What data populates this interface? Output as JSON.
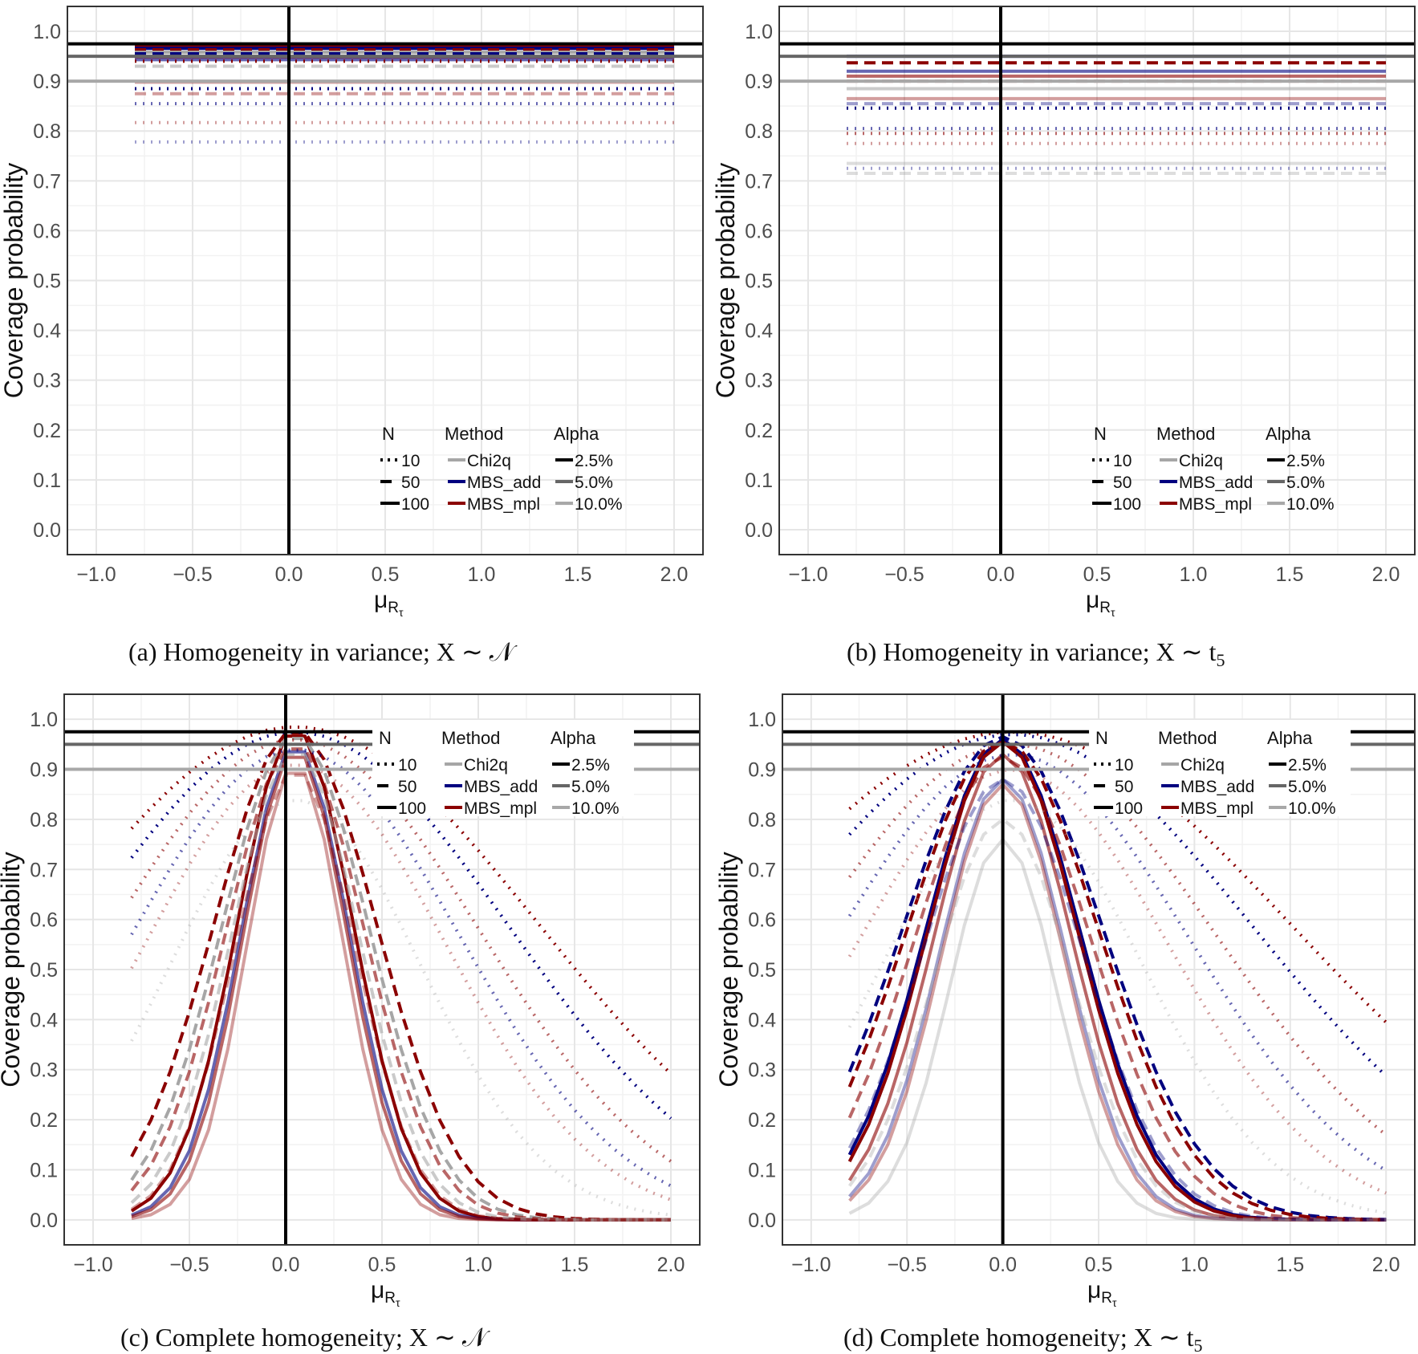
{
  "colors": {
    "Chi2q": "#a6a6a6",
    "MBS_add": "#00007f",
    "MBS_mpl": "#8b0000",
    "alpha_2.5": "#000000",
    "alpha_5.0": "#666666",
    "alpha_10.0": "#a8a8a8"
  },
  "chart_data": [
    {
      "id": "a",
      "type": "line",
      "caption": "(a) Homogeneity in variance; X ∼ 𝒩",
      "ylabel": "Coverage probability",
      "xlabel": "μ",
      "xlabel_sub": "R",
      "xlabel_subsub": "τ",
      "xlim": [
        -1.15,
        2.15
      ],
      "ylim": [
        -0.05,
        1.05
      ],
      "xticks": [
        -1.0,
        -0.5,
        0.0,
        0.5,
        1.0,
        1.5,
        2.0
      ],
      "xtick_labels": [
        "−1.0",
        "−0.5",
        "0.0",
        "0.5",
        "1.0",
        "1.5",
        "2.0"
      ],
      "yticks": [
        0,
        0.1,
        0.2,
        0.3,
        0.4,
        0.5,
        0.6,
        0.7,
        0.8,
        0.9,
        1.0
      ],
      "ytick_labels": [
        "0.0",
        "0.1",
        "0.2",
        "0.3",
        "0.4",
        "0.5",
        "0.6",
        "0.7",
        "0.8",
        "0.9",
        "1.0"
      ],
      "vline": 0.0,
      "hlines": [
        {
          "alpha": "2.5%",
          "y": 0.975
        },
        {
          "alpha": "5.0%",
          "y": 0.95
        },
        {
          "alpha": "10.0%",
          "y": 0.9
        }
      ],
      "x": [
        -0.8,
        2.0
      ],
      "series": [
        {
          "method": "MBS_mpl",
          "N": "100",
          "alpha": "2.5%",
          "values": [
            0.97,
            0.97
          ]
        },
        {
          "method": "MBS_add",
          "N": "100",
          "alpha": "2.5%",
          "values": [
            0.966,
            0.966
          ]
        },
        {
          "method": "MBS_mpl",
          "N": "50",
          "alpha": "2.5%",
          "values": [
            0.963,
            0.963
          ]
        },
        {
          "method": "Chi2q",
          "N": "100",
          "alpha": "2.5%",
          "values": [
            0.958,
            0.958
          ]
        },
        {
          "method": "MBS_add",
          "N": "50",
          "alpha": "2.5%",
          "values": [
            0.955,
            0.955
          ]
        },
        {
          "method": "MBS_mpl",
          "N": "100",
          "alpha": "5.0%",
          "values": [
            0.948,
            0.948
          ]
        },
        {
          "method": "MBS_add",
          "N": "100",
          "alpha": "5.0%",
          "values": [
            0.943,
            0.943
          ]
        },
        {
          "method": "MBS_mpl",
          "N": "10",
          "alpha": "2.5%",
          "values": [
            0.94,
            0.94
          ]
        },
        {
          "method": "Chi2q",
          "N": "50",
          "alpha": "5.0%",
          "values": [
            0.93,
            0.93
          ]
        },
        {
          "method": "MBS_mpl",
          "N": "100",
          "alpha": "10.0%",
          "values": [
            0.898,
            0.898
          ]
        },
        {
          "method": "MBS_add",
          "N": "10",
          "alpha": "2.5%",
          "values": [
            0.885,
            0.885
          ]
        },
        {
          "method": "MBS_mpl",
          "N": "50",
          "alpha": "10.0%",
          "values": [
            0.875,
            0.875
          ]
        },
        {
          "method": "MBS_add",
          "N": "10",
          "alpha": "5.0%",
          "values": [
            0.855,
            0.855
          ]
        },
        {
          "method": "MBS_mpl",
          "N": "10",
          "alpha": "10.0%",
          "values": [
            0.817,
            0.817
          ]
        },
        {
          "method": "MBS_add",
          "N": "10",
          "alpha": "10.0%",
          "values": [
            0.778,
            0.778
          ]
        }
      ],
      "legend": {
        "position": "bottom-right-inside",
        "N_title": "N",
        "N_items": [
          "10",
          "50",
          "100"
        ],
        "Method_title": "Method",
        "Method_items": [
          "Chi2q",
          "MBS_add",
          "MBS_mpl"
        ],
        "Alpha_title": "Alpha",
        "Alpha_items": [
          "2.5%",
          "5.0%",
          "10.0%"
        ]
      }
    },
    {
      "id": "b",
      "type": "line",
      "caption": "(b) Homogeneity in variance; X ∼ t",
      "caption_sub": "5",
      "ylabel": "Coverage probability",
      "xlabel": "μ",
      "xlabel_sub": "R",
      "xlabel_subsub": "τ",
      "xlim": [
        -1.15,
        2.15
      ],
      "ylim": [
        -0.05,
        1.05
      ],
      "xticks": [
        -1.0,
        -0.5,
        0.0,
        0.5,
        1.0,
        1.5,
        2.0
      ],
      "xtick_labels": [
        "−1.0",
        "−0.5",
        "0.0",
        "0.5",
        "1.0",
        "1.5",
        "2.0"
      ],
      "yticks": [
        0,
        0.1,
        0.2,
        0.3,
        0.4,
        0.5,
        0.6,
        0.7,
        0.8,
        0.9,
        1.0
      ],
      "ytick_labels": [
        "0.0",
        "0.1",
        "0.2",
        "0.3",
        "0.4",
        "0.5",
        "0.6",
        "0.7",
        "0.8",
        "0.9",
        "1.0"
      ],
      "vline": 0.0,
      "hlines": [
        {
          "alpha": "2.5%",
          "y": 0.975
        },
        {
          "alpha": "5.0%",
          "y": 0.95
        },
        {
          "alpha": "10.0%",
          "y": 0.9
        }
      ],
      "x": [
        -0.8,
        2.0
      ],
      "series": [
        {
          "method": "MBS_add",
          "N": "100",
          "alpha": "2.5%",
          "values": [
            0.95,
            0.95
          ]
        },
        {
          "method": "MBS_mpl",
          "N": "50",
          "alpha": "2.5%",
          "values": [
            0.937,
            0.937
          ]
        },
        {
          "method": "MBS_add",
          "N": "100",
          "alpha": "5.0%",
          "values": [
            0.92,
            0.92
          ]
        },
        {
          "method": "MBS_mpl",
          "N": "100",
          "alpha": "5.0%",
          "values": [
            0.91,
            0.91
          ]
        },
        {
          "method": "MBS_mpl",
          "N": "50",
          "alpha": "5.0%",
          "values": [
            0.9,
            0.9
          ]
        },
        {
          "method": "Chi2q",
          "N": "100",
          "alpha": "5.0%",
          "values": [
            0.885,
            0.885
          ]
        },
        {
          "method": "MBS_mpl",
          "N": "100",
          "alpha": "10.0%",
          "values": [
            0.865,
            0.865
          ]
        },
        {
          "method": "MBS_add",
          "N": "50",
          "alpha": "10.0%",
          "values": [
            0.855,
            0.855
          ]
        },
        {
          "method": "MBS_add",
          "N": "10",
          "alpha": "2.5%",
          "values": [
            0.846,
            0.846
          ]
        },
        {
          "method": "MBS_add",
          "N": "10",
          "alpha": "5.0%",
          "values": [
            0.805,
            0.805
          ]
        },
        {
          "method": "MBS_mpl",
          "N": "10",
          "alpha": "5.0%",
          "values": [
            0.795,
            0.795
          ]
        },
        {
          "method": "MBS_mpl",
          "N": "10",
          "alpha": "10.0%",
          "values": [
            0.775,
            0.775
          ]
        },
        {
          "method": "Chi2q",
          "N": "100",
          "alpha": "10.0%",
          "values": [
            0.735,
            0.735
          ]
        },
        {
          "method": "MBS_add",
          "N": "10",
          "alpha": "10.0%",
          "values": [
            0.725,
            0.725
          ]
        },
        {
          "method": "Chi2q",
          "N": "50",
          "alpha": "10.0%",
          "values": [
            0.715,
            0.715
          ]
        }
      ],
      "legend": {
        "position": "bottom-right-inside",
        "N_title": "N",
        "N_items": [
          "10",
          "50",
          "100"
        ],
        "Method_title": "Method",
        "Method_items": [
          "Chi2q",
          "MBS_add",
          "MBS_mpl"
        ],
        "Alpha_title": "Alpha",
        "Alpha_items": [
          "2.5%",
          "5.0%",
          "10.0%"
        ]
      }
    },
    {
      "id": "c",
      "type": "line",
      "caption": "(c) Complete homogeneity; X ∼ 𝒩",
      "ylabel": "Coverage probability",
      "xlabel": "μ",
      "xlabel_sub": "R",
      "xlabel_subsub": "τ",
      "xlim": [
        -1.15,
        2.15
      ],
      "ylim": [
        -0.05,
        1.05
      ],
      "xticks": [
        -1.0,
        -0.5,
        0.0,
        0.5,
        1.0,
        1.5,
        2.0
      ],
      "xtick_labels": [
        "−1.0",
        "−0.5",
        "0.0",
        "0.5",
        "1.0",
        "1.5",
        "2.0"
      ],
      "yticks": [
        0,
        0.1,
        0.2,
        0.3,
        0.4,
        0.5,
        0.6,
        0.7,
        0.8,
        0.9,
        1.0
      ],
      "ytick_labels": [
        "0.0",
        "0.1",
        "0.2",
        "0.3",
        "0.4",
        "0.5",
        "0.6",
        "0.7",
        "0.8",
        "0.9",
        "1.0"
      ],
      "vline": 0.0,
      "hlines": [
        {
          "alpha": "2.5%",
          "y": 0.975
        },
        {
          "alpha": "5.0%",
          "y": 0.95
        },
        {
          "alpha": "10.0%",
          "y": 0.9
        }
      ],
      "curve_params": {
        "note": "Coverage curves approximated as c(x) = peak * exp(-((x - mu0)/width)^2 / 2) ; x from -0.8 to 2.0 step 0.1",
        "x_min": -0.8,
        "x_max": 2.0,
        "x_step": 0.1
      },
      "series": [
        {
          "method": "MBS_mpl",
          "N": "100",
          "alpha": "2.5%",
          "peak": 0.98,
          "mu0": 0.05,
          "width": 0.3
        },
        {
          "method": "MBS_add",
          "N": "100",
          "alpha": "5.0%",
          "peak": 0.95,
          "mu0": 0.05,
          "width": 0.28
        },
        {
          "method": "MBS_mpl",
          "N": "100",
          "alpha": "5.0%",
          "peak": 0.94,
          "mu0": 0.05,
          "width": 0.27
        },
        {
          "method": "MBS_mpl",
          "N": "100",
          "alpha": "10.0%",
          "peak": 0.91,
          "mu0": 0.05,
          "width": 0.25
        },
        {
          "method": "MBS_mpl",
          "N": "50",
          "alpha": "2.5%",
          "peak": 0.98,
          "mu0": 0.05,
          "width": 0.42
        },
        {
          "method": "Chi2q",
          "N": "50",
          "alpha": "2.5%",
          "peak": 0.97,
          "mu0": 0.05,
          "width": 0.38
        },
        {
          "method": "MBS_mpl",
          "N": "50",
          "alpha": "5.0%",
          "peak": 0.95,
          "mu0": 0.05,
          "width": 0.36
        },
        {
          "method": "Chi2q",
          "N": "50",
          "alpha": "5.0%",
          "peak": 0.94,
          "mu0": 0.05,
          "width": 0.33
        },
        {
          "method": "MBS_mpl",
          "N": "50",
          "alpha": "10.0%",
          "peak": 0.9,
          "mu0": 0.05,
          "width": 0.31
        },
        {
          "method": "MBS_mpl",
          "N": "10",
          "alpha": "2.5%",
          "peak": 0.985,
          "mu0": 0.05,
          "width": 1.25
        },
        {
          "method": "MBS_add",
          "N": "10",
          "alpha": "2.5%",
          "peak": 0.975,
          "mu0": 0.05,
          "width": 1.1
        },
        {
          "method": "MBS_mpl",
          "N": "10",
          "alpha": "5.0%",
          "peak": 0.96,
          "mu0": 0.05,
          "width": 0.95
        },
        {
          "method": "MBS_add",
          "N": "10",
          "alpha": "5.0%",
          "peak": 0.94,
          "mu0": 0.05,
          "width": 0.85
        },
        {
          "method": "MBS_mpl",
          "N": "10",
          "alpha": "10.0%",
          "peak": 0.91,
          "mu0": 0.05,
          "width": 0.78
        },
        {
          "method": "Chi2q",
          "N": "10",
          "alpha": "10.0%",
          "peak": 0.84,
          "mu0": 0.05,
          "width": 0.65
        }
      ],
      "legend": {
        "position": "top-right-inside",
        "N_title": "N",
        "N_items": [
          "10",
          "50",
          "100"
        ],
        "Method_title": "Method",
        "Method_items": [
          "Chi2q",
          "MBS_add",
          "MBS_mpl"
        ],
        "Alpha_title": "Alpha",
        "Alpha_items": [
          "2.5%",
          "5.0%",
          "10.0%"
        ]
      }
    },
    {
      "id": "d",
      "type": "line",
      "caption": "(d) Complete homogeneity; X ∼ t",
      "caption_sub": "5",
      "ylabel": "Coverage probability",
      "xlabel": "μ",
      "xlabel_sub": "R",
      "xlabel_subsub": "τ",
      "xlim": [
        -1.15,
        2.15
      ],
      "ylim": [
        -0.05,
        1.05
      ],
      "xticks": [
        -1.0,
        -0.5,
        0.0,
        0.5,
        1.0,
        1.5,
        2.0
      ],
      "xtick_labels": [
        "−1.0",
        "−0.5",
        "0.0",
        "0.5",
        "1.0",
        "1.5",
        "2.0"
      ],
      "yticks": [
        0,
        0.1,
        0.2,
        0.3,
        0.4,
        0.5,
        0.6,
        0.7,
        0.8,
        0.9,
        1.0
      ],
      "ytick_labels": [
        "0.0",
        "0.1",
        "0.2",
        "0.3",
        "0.4",
        "0.5",
        "0.6",
        "0.7",
        "0.8",
        "0.9",
        "1.0"
      ],
      "vline": 0.0,
      "hlines": [
        {
          "alpha": "2.5%",
          "y": 0.975
        },
        {
          "alpha": "5.0%",
          "y": 0.95
        },
        {
          "alpha": "10.0%",
          "y": 0.9
        }
      ],
      "curve_params": {
        "note": "Coverage curves approximated as c(x) = peak * exp(-((x - mu0)/width)^2 / 2) ; x from -0.8 to 2.0 step 0.1",
        "x_min": -0.8,
        "x_max": 2.0,
        "x_step": 0.1
      },
      "series": [
        {
          "method": "MBS_add",
          "N": "100",
          "alpha": "2.5%",
          "peak": 0.96,
          "mu0": 0.0,
          "width": 0.4
        },
        {
          "method": "MBS_mpl",
          "N": "100",
          "alpha": "2.5%",
          "peak": 0.955,
          "mu0": 0.0,
          "width": 0.39
        },
        {
          "method": "MBS_mpl",
          "N": "100",
          "alpha": "5.0%",
          "peak": 0.93,
          "mu0": 0.0,
          "width": 0.36
        },
        {
          "method": "MBS_add",
          "N": "100",
          "alpha": "10.0%",
          "peak": 0.88,
          "mu0": 0.0,
          "width": 0.33
        },
        {
          "method": "MBS_mpl",
          "N": "100",
          "alpha": "10.0%",
          "peak": 0.87,
          "mu0": 0.0,
          "width": 0.32
        },
        {
          "method": "Chi2q",
          "N": "100",
          "alpha": "10.0%",
          "peak": 0.76,
          "mu0": 0.0,
          "width": 0.28
        },
        {
          "method": "MBS_add",
          "N": "50",
          "alpha": "2.5%",
          "peak": 0.965,
          "mu0": 0.0,
          "width": 0.52
        },
        {
          "method": "MBS_mpl",
          "N": "50",
          "alpha": "2.5%",
          "peak": 0.955,
          "mu0": 0.0,
          "width": 0.5
        },
        {
          "method": "MBS_mpl",
          "N": "50",
          "alpha": "5.0%",
          "peak": 0.925,
          "mu0": 0.0,
          "width": 0.46
        },
        {
          "method": "MBS_add",
          "N": "50",
          "alpha": "10.0%",
          "peak": 0.88,
          "mu0": 0.0,
          "width": 0.42
        },
        {
          "method": "Chi2q",
          "N": "50",
          "alpha": "10.0%",
          "peak": 0.8,
          "mu0": 0.0,
          "width": 0.36
        },
        {
          "method": "MBS_mpl",
          "N": "10",
          "alpha": "2.5%",
          "peak": 0.975,
          "mu0": 0.05,
          "width": 1.45
        },
        {
          "method": "MBS_add",
          "N": "10",
          "alpha": "2.5%",
          "peak": 0.97,
          "mu0": 0.05,
          "width": 1.25
        },
        {
          "method": "MBS_mpl",
          "N": "10",
          "alpha": "5.0%",
          "peak": 0.95,
          "mu0": 0.05,
          "width": 1.05
        },
        {
          "method": "MBS_add",
          "N": "10",
          "alpha": "5.0%",
          "peak": 0.93,
          "mu0": 0.05,
          "width": 0.92
        },
        {
          "method": "MBS_mpl",
          "N": "10",
          "alpha": "10.0%",
          "peak": 0.9,
          "mu0": 0.05,
          "width": 0.82
        },
        {
          "method": "Chi2q",
          "N": "10",
          "alpha": "10.0%",
          "peak": 0.84,
          "mu0": 0.05,
          "width": 0.68
        }
      ],
      "legend": {
        "position": "top-right-inside",
        "N_title": "N",
        "N_items": [
          "10",
          "50",
          "100"
        ],
        "Method_title": "Method",
        "Method_items": [
          "Chi2q",
          "MBS_add",
          "MBS_mpl"
        ],
        "Alpha_title": "Alpha",
        "Alpha_items": [
          "2.5%",
          "5.0%",
          "10.0%"
        ]
      }
    }
  ]
}
